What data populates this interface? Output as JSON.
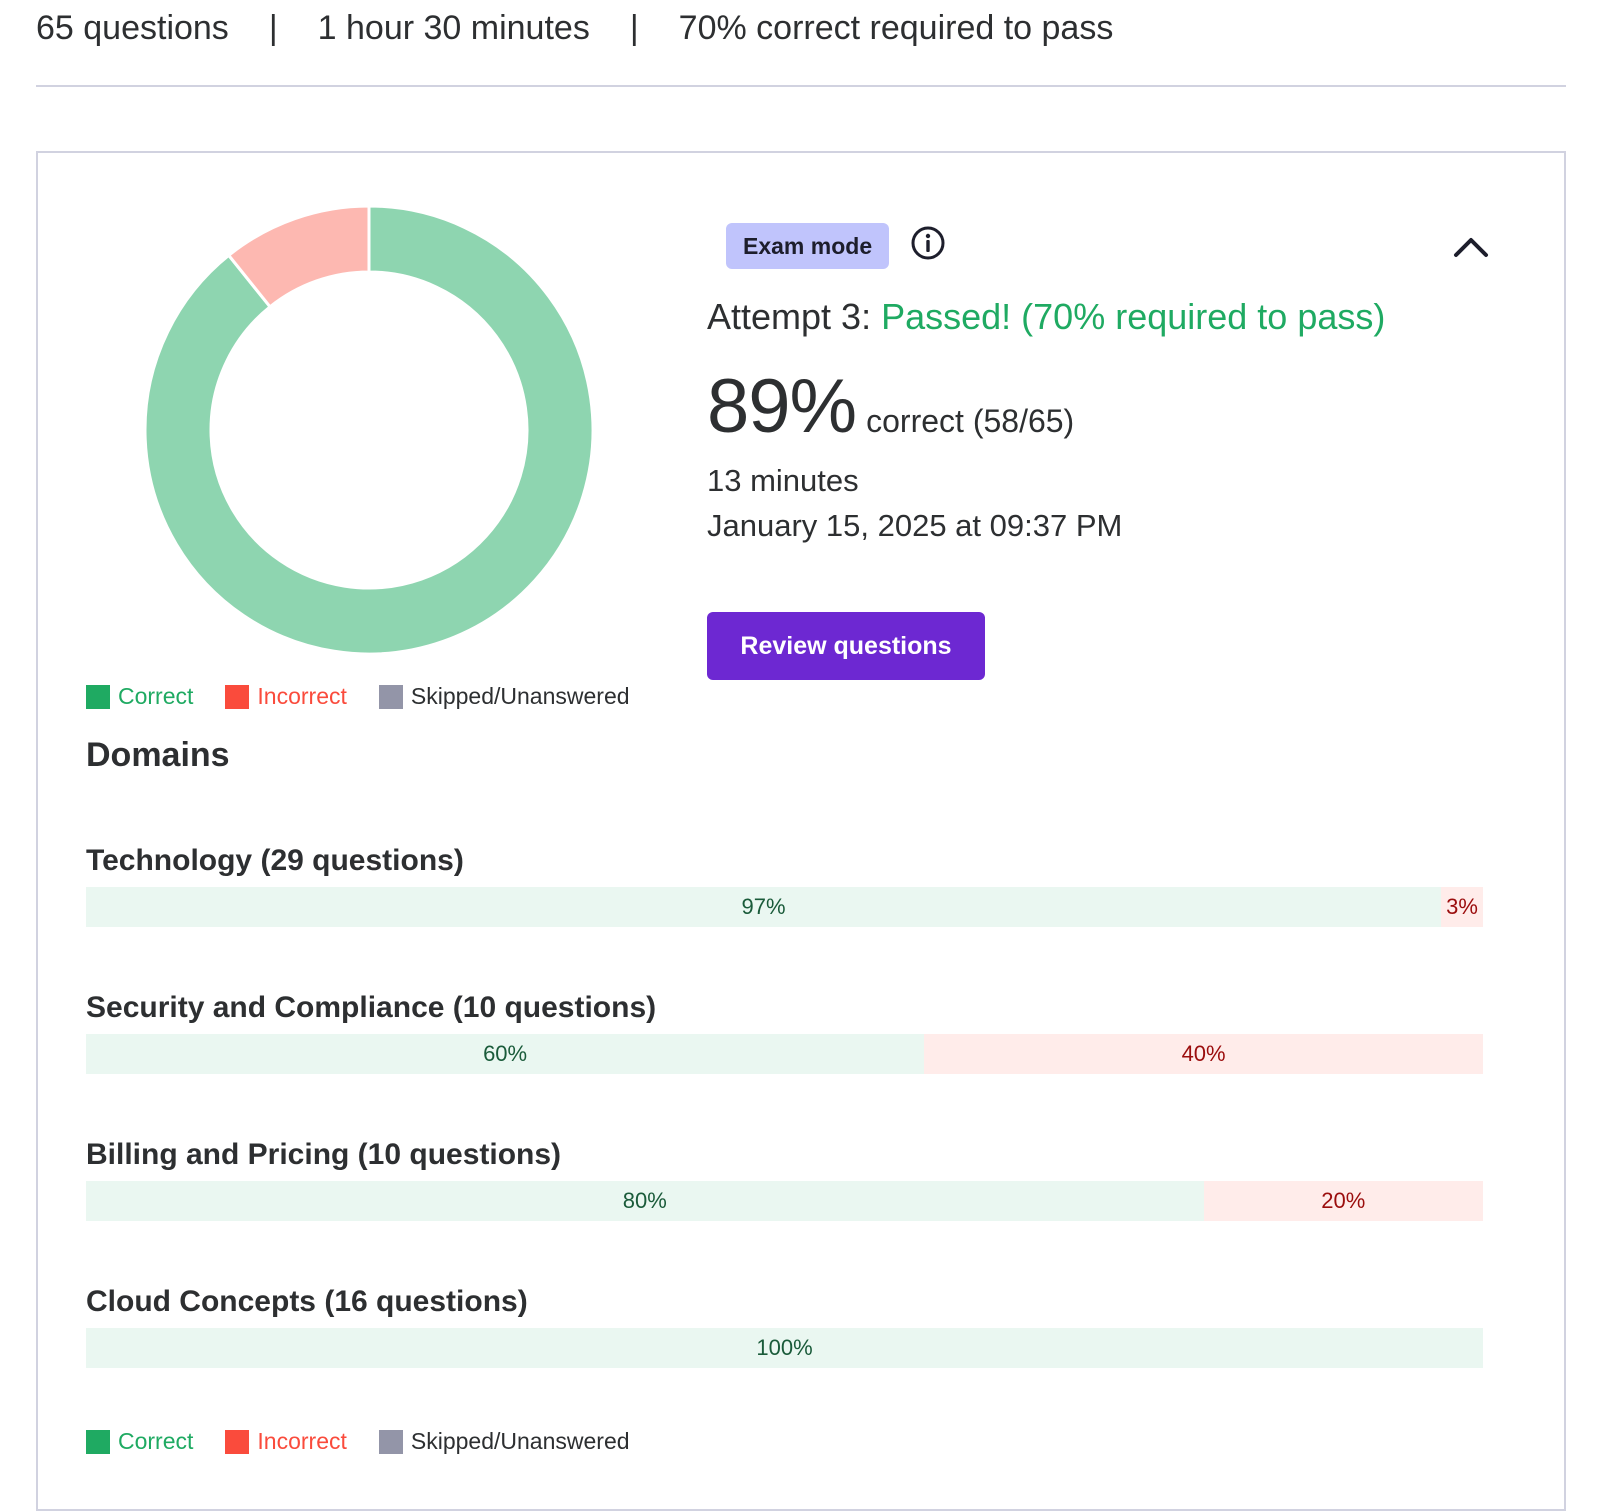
{
  "summary": {
    "questions": "65 questions",
    "separator": "|",
    "duration": "1 hour 30 minutes",
    "pass_requirement": "70% correct required to pass"
  },
  "colors": {
    "correct": "#1faa62",
    "correct_light": "#8ed5b0",
    "incorrect": "#fa4b3c",
    "incorrect_light": "#fdb8b1",
    "skipped": "#9395a8",
    "accent": "#6d28d2",
    "badge_bg": "#c0c4fc",
    "passed_text": "#1faa62"
  },
  "donut": {
    "correct": 58,
    "incorrect": 7,
    "skipped": 0,
    "total": 65
  },
  "legend": {
    "correct": "Correct",
    "incorrect": "Incorrect",
    "skipped": "Skipped/Unanswered"
  },
  "result": {
    "mode_badge": "Exam mode",
    "info_icon": "info-circle-icon",
    "collapse_icon": "chevron-up-icon",
    "attempt_label": "Attempt 3:",
    "status_text": "Passed! (70% required to pass)",
    "score_percent": "89%",
    "score_detail": "correct (58/65)",
    "time_taken": "13 minutes",
    "completed_at": "January 15, 2025 at 09:37 PM",
    "review_button": "Review questions"
  },
  "domains_heading": "Domains",
  "domains": [
    {
      "title": "Technology (29 questions)",
      "correct_pct": 97,
      "incorrect_pct": 3,
      "correct_label": "97%",
      "incorrect_label": "3%"
    },
    {
      "title": "Security and Compliance (10 questions)",
      "correct_pct": 60,
      "incorrect_pct": 40,
      "correct_label": "60%",
      "incorrect_label": "40%"
    },
    {
      "title": "Billing and Pricing (10 questions)",
      "correct_pct": 80,
      "incorrect_pct": 20,
      "correct_label": "80%",
      "incorrect_label": "20%"
    },
    {
      "title": "Cloud Concepts (16 questions)",
      "correct_pct": 100,
      "incorrect_pct": 0,
      "correct_label": "100%",
      "incorrect_label": ""
    }
  ]
}
